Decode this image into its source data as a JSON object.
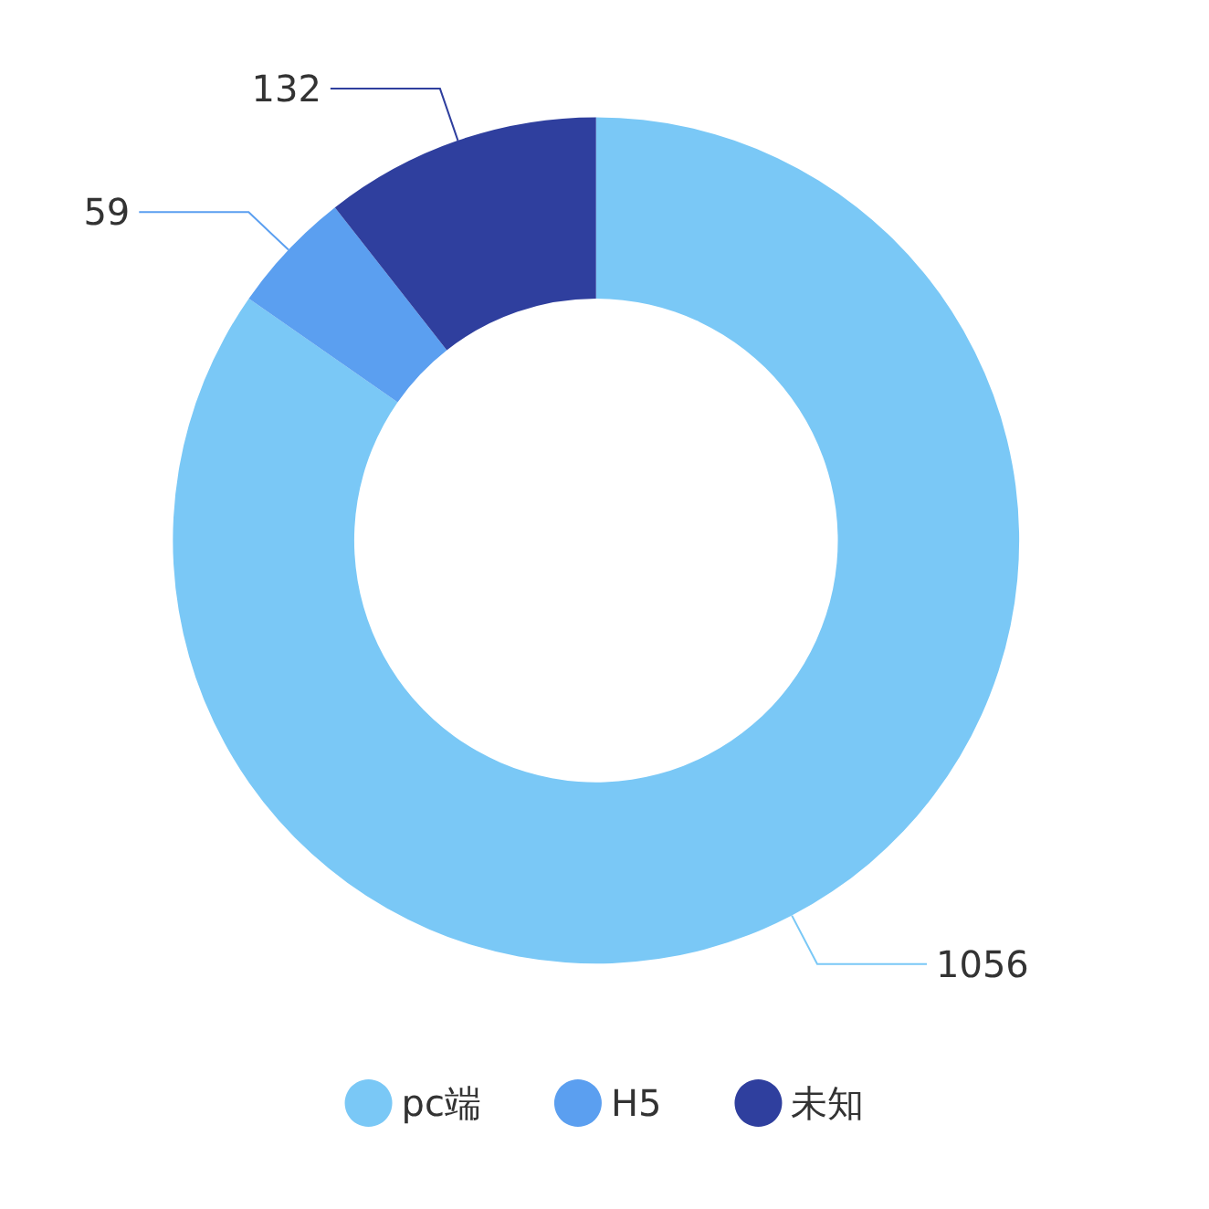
{
  "chart_data": {
    "type": "donut",
    "categories": [
      "pc端",
      "H5",
      "未知"
    ],
    "values": [
      1056,
      59,
      132
    ],
    "colors": [
      "#7ac8f6",
      "#5b9ff0",
      "#2f3f9e"
    ],
    "data_labels": true,
    "legend": "bottom"
  }
}
